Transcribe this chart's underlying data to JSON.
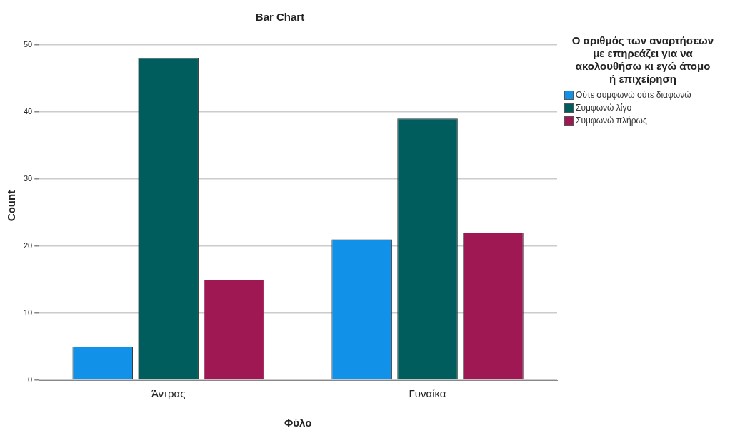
{
  "chart_data": {
    "type": "bar",
    "title": "Bar Chart",
    "xlabel": "Φύλο",
    "ylabel": "Count",
    "legend_title": "Ο αριθμός των αναρτήσεων με επηρεάζει για να ακολουθήσω κι εγώ άτομο ή επιχείρηση",
    "categories": [
      "Άντρας",
      "Γυναίκα"
    ],
    "series": [
      {
        "name": "Ούτε συμφωνώ ούτε διαφωνώ",
        "color": "#1192e8",
        "values": [
          5,
          21
        ]
      },
      {
        "name": "Συμφωνώ λίγο",
        "color": "#005d5d",
        "values": [
          48,
          39
        ]
      },
      {
        "name": "Συμφωνώ πλήρως",
        "color": "#9f1853",
        "values": [
          15,
          22
        ]
      }
    ],
    "ylim": [
      0,
      52
    ],
    "yticks": [
      0,
      10,
      20,
      30,
      40,
      50
    ],
    "grid": "y",
    "legend": "top right"
  }
}
